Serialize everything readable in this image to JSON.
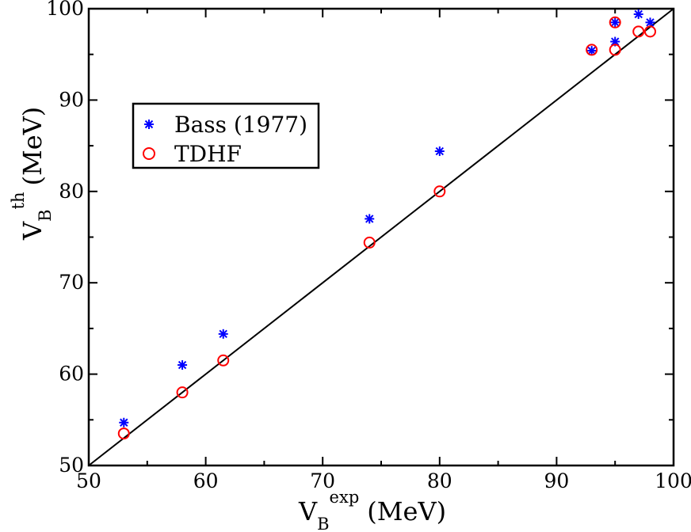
{
  "chart_data": {
    "type": "scatter",
    "title": "",
    "xlabel": {
      "main": "V",
      "sub": "B",
      "sup": "exp",
      "unit": "(MeV)"
    },
    "ylabel": {
      "main": "V",
      "sub": "B",
      "sup": "th",
      "unit": "(MeV)"
    },
    "xlim": [
      50,
      100
    ],
    "ylim": [
      50,
      100
    ],
    "xticks": [
      50,
      60,
      70,
      80,
      90,
      100
    ],
    "yticks": [
      50,
      60,
      70,
      80,
      90,
      100
    ],
    "x_tick_labels": [
      "50",
      "60",
      "70",
      "80",
      "90",
      "100"
    ],
    "y_tick_labels": [
      "50",
      "60",
      "70",
      "80",
      "90",
      "100"
    ],
    "grid": false,
    "legend_position": "upper-left",
    "reference_line": {
      "x": [
        50,
        100
      ],
      "y": [
        50,
        100
      ],
      "color": "#000000"
    },
    "series": [
      {
        "name": "Bass (1977)",
        "marker": "asterisk",
        "color": "#0000ff",
        "points": [
          [
            53,
            54.7
          ],
          [
            58,
            61
          ],
          [
            61.5,
            64.4
          ],
          [
            74,
            77
          ],
          [
            80,
            84.4
          ],
          [
            93,
            95.4
          ],
          [
            95,
            96.4
          ],
          [
            95,
            98.5
          ],
          [
            97,
            99.4
          ],
          [
            98,
            98.5
          ]
        ]
      },
      {
        "name": "TDHF",
        "marker": "open-circle",
        "color": "#ff0000",
        "points": [
          [
            53,
            53.5
          ],
          [
            58,
            58
          ],
          [
            61.5,
            61.5
          ],
          [
            74,
            74.4
          ],
          [
            80,
            80
          ],
          [
            93,
            95.5
          ],
          [
            95,
            95.5
          ],
          [
            95,
            98.5
          ],
          [
            97,
            97.5
          ],
          [
            98,
            97.5
          ]
        ]
      }
    ]
  }
}
